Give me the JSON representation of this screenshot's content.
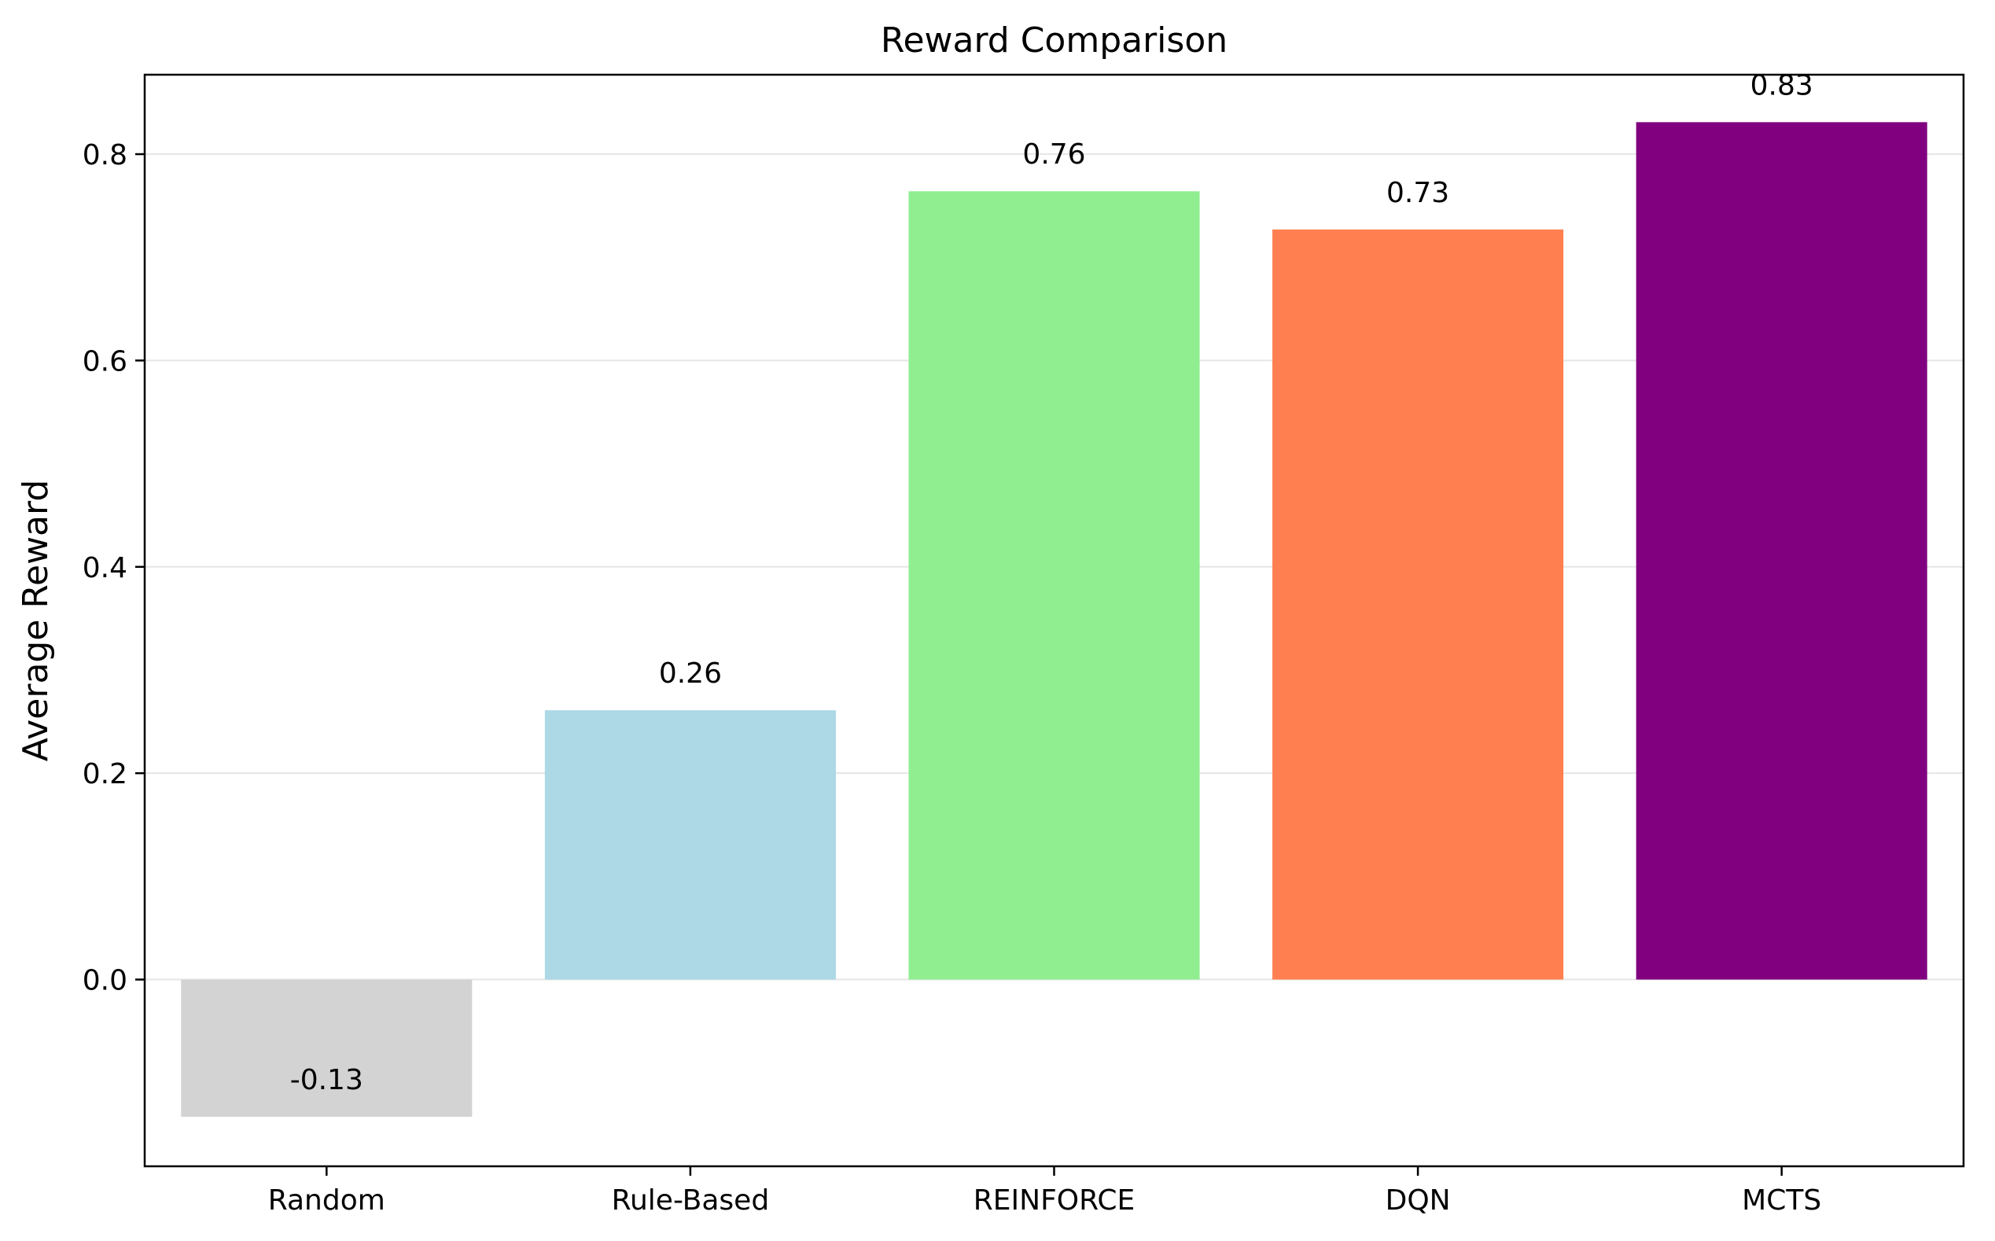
{
  "chart_data": {
    "type": "bar",
    "title": "Reward Comparison",
    "xlabel": "",
    "ylabel": "Average Reward",
    "categories": [
      "Random",
      "Rule-Based",
      "REINFORCE",
      "DQN",
      "MCTS"
    ],
    "values": [
      -0.133,
      0.261,
      0.764,
      0.727,
      0.831
    ],
    "data_labels": [
      "-0.13",
      "0.26",
      "0.76",
      "0.73",
      "0.83"
    ],
    "colors": [
      "#d3d3d3",
      "#add8e6",
      "#90ee90",
      "#ff7f50",
      "#800080"
    ],
    "ylim": [
      -0.181,
      0.877
    ],
    "yticks": [
      0.0,
      0.2,
      0.4,
      0.6,
      0.8
    ],
    "ytick_labels": [
      "0.0",
      "0.2",
      "0.4",
      "0.6",
      "0.8"
    ],
    "grid": "horizontal",
    "legend": "none"
  }
}
